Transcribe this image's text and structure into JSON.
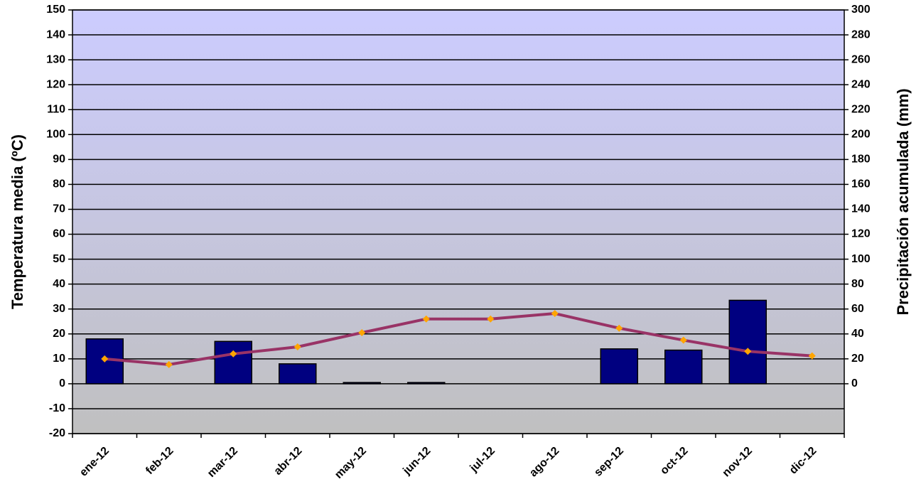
{
  "chart_data": {
    "type": "bar_line",
    "y_label": "Temperatura media (ºC)",
    "y2_label": "Precipitación acumulada (mm)",
    "categories": [
      "ene-12",
      "feb-12",
      "mar-12",
      "abr-12",
      "may-12",
      "jun-12",
      "jul-12",
      "ago-12",
      "sep-12",
      "oct-12",
      "nov-12",
      "dic-12"
    ],
    "series": [
      {
        "type": "bar",
        "axis": "y2",
        "color": "#000080",
        "values": [
          36,
          0,
          34,
          16,
          1,
          1,
          0,
          0,
          28,
          27,
          67,
          0
        ]
      },
      {
        "type": "line",
        "axis": "y",
        "color": "#993366",
        "marker_color": "#ffa500",
        "values": [
          10,
          7.7,
          12,
          14.8,
          20.5,
          26,
          26,
          28.2,
          22.3,
          17.5,
          13,
          11.2
        ]
      }
    ],
    "ylim": [
      -20,
      150
    ],
    "yticks": [
      -20,
      -10,
      0,
      10,
      20,
      30,
      40,
      50,
      60,
      70,
      80,
      90,
      100,
      110,
      120,
      130,
      140,
      150
    ],
    "y2lim": [
      -40,
      300
    ],
    "y2ticks": [
      0,
      20,
      40,
      60,
      80,
      100,
      120,
      140,
      160,
      180,
      200,
      220,
      240,
      260,
      280,
      300
    ],
    "grid": true
  }
}
